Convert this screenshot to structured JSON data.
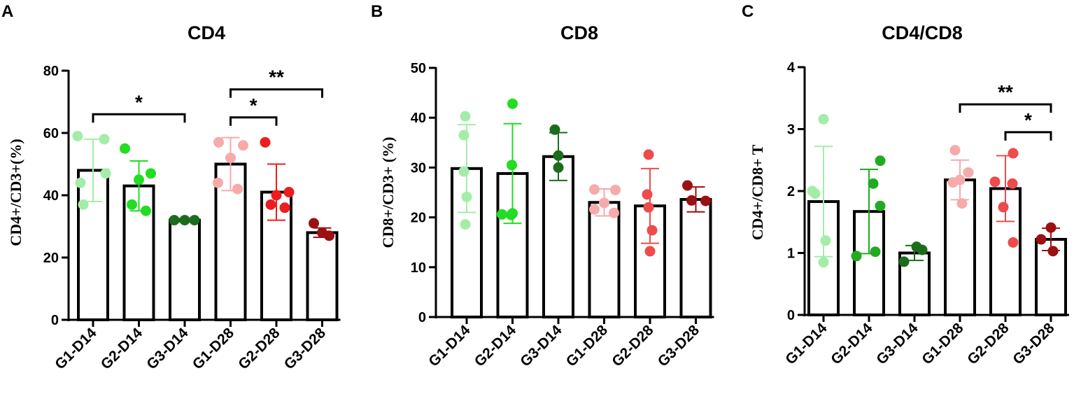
{
  "chart_data": [
    {
      "type": "bar",
      "panel": "A",
      "title": "CD4",
      "ylabel": "CD4+/CD3+(%)",
      "xlabel": "",
      "ylim": [
        0,
        80
      ],
      "yticks": [
        0,
        20,
        40,
        60,
        80
      ],
      "categories": [
        "G1-D14",
        "G2-D14",
        "G3-D14",
        "G1-D28",
        "G2-D28",
        "G3-D28"
      ],
      "values": [
        48,
        43,
        32,
        50,
        41,
        28
      ],
      "errors": [
        10,
        8,
        0.5,
        8.5,
        9,
        1.5
      ],
      "points": [
        [
          59,
          58,
          47,
          44,
          37
        ],
        [
          55,
          47,
          45,
          37,
          35
        ],
        [
          32,
          32,
          32
        ],
        [
          57,
          56,
          52,
          44,
          42
        ],
        [
          57,
          41,
          40,
          37,
          36
        ],
        [
          31,
          28,
          27
        ]
      ],
      "colors": [
        "#a4eda8",
        "#22dd22",
        "#1d6b1d",
        "#f6aaaa",
        "#ee1c1c",
        "#9b1010"
      ],
      "significance": [
        {
          "from": 0,
          "to": 2,
          "label": "*",
          "y": 66
        },
        {
          "from": 3,
          "to": 4,
          "label": "*",
          "y": 65
        },
        {
          "from": 3,
          "to": 5,
          "label": "**",
          "y": 74
        }
      ]
    },
    {
      "type": "bar",
      "panel": "B",
      "title": "CD8",
      "ylabel": "CD8+/CD3+ (%)",
      "xlabel": "",
      "ylim": [
        0,
        50
      ],
      "yticks": [
        0,
        10,
        20,
        30,
        40,
        50
      ],
      "categories": [
        "G1-D14",
        "G2-D14",
        "G3-D14",
        "G1-D28",
        "G2-D28",
        "G3-D28"
      ],
      "values": [
        29.8,
        28.8,
        32.2,
        23,
        22.3,
        23.6
      ],
      "errors": [
        8.8,
        10,
        4.8,
        2.7,
        7.5,
        2.5
      ],
      "points": [
        [
          40.3,
          36.5,
          29.2,
          24.1,
          18.6
        ],
        [
          42.8,
          30.5,
          20.8,
          20.6,
          20.5
        ],
        [
          37.6,
          32.4,
          30.0
        ],
        [
          25.6,
          25.5,
          22.9,
          21.6,
          20.9
        ],
        [
          32.6,
          24.6,
          22.0,
          17.4,
          13.2
        ],
        [
          26.4,
          23.4,
          23.3
        ]
      ],
      "colors": [
        "#a4eda8",
        "#22dd22",
        "#1d6b1d",
        "#f6aaaa",
        "#ee4b4b",
        "#9b1010"
      ],
      "significance": []
    },
    {
      "type": "bar",
      "panel": "C",
      "title": "CD4/CD8",
      "ylabel": "CD4+/CD8+ T",
      "xlabel": "",
      "ylim": [
        0,
        4
      ],
      "yticks": [
        0,
        1,
        2,
        3,
        4
      ],
      "categories": [
        "G1-D14",
        "G2-D14",
        "G3-D14",
        "G1-D28",
        "G2-D28",
        "G3-D28"
      ],
      "values": [
        1.83,
        1.67,
        1.0,
        2.18,
        2.04,
        1.22
      ],
      "errors": [
        0.89,
        0.68,
        0.12,
        0.32,
        0.53,
        0.18
      ],
      "points": [
        [
          3.16,
          2.0,
          1.96,
          1.2,
          0.85
        ],
        [
          2.49,
          2.12,
          1.76,
          1.02,
          0.95
        ],
        [
          1.1,
          1.05,
          0.86
        ],
        [
          2.66,
          2.3,
          2.18,
          2.14,
          1.8
        ],
        [
          2.61,
          2.15,
          2.12,
          1.74,
          1.17
        ],
        [
          1.41,
          1.22,
          1.03
        ]
      ],
      "colors": [
        "#a4eda8",
        "#22aa22",
        "#1d6b1d",
        "#f6aaaa",
        "#ee4b4b",
        "#9b1010"
      ],
      "significance": [
        {
          "from": 3,
          "to": 5,
          "label": "**",
          "y": 3.4
        },
        {
          "from": 4,
          "to": 5,
          "label": "*",
          "y": 2.95
        }
      ]
    }
  ]
}
